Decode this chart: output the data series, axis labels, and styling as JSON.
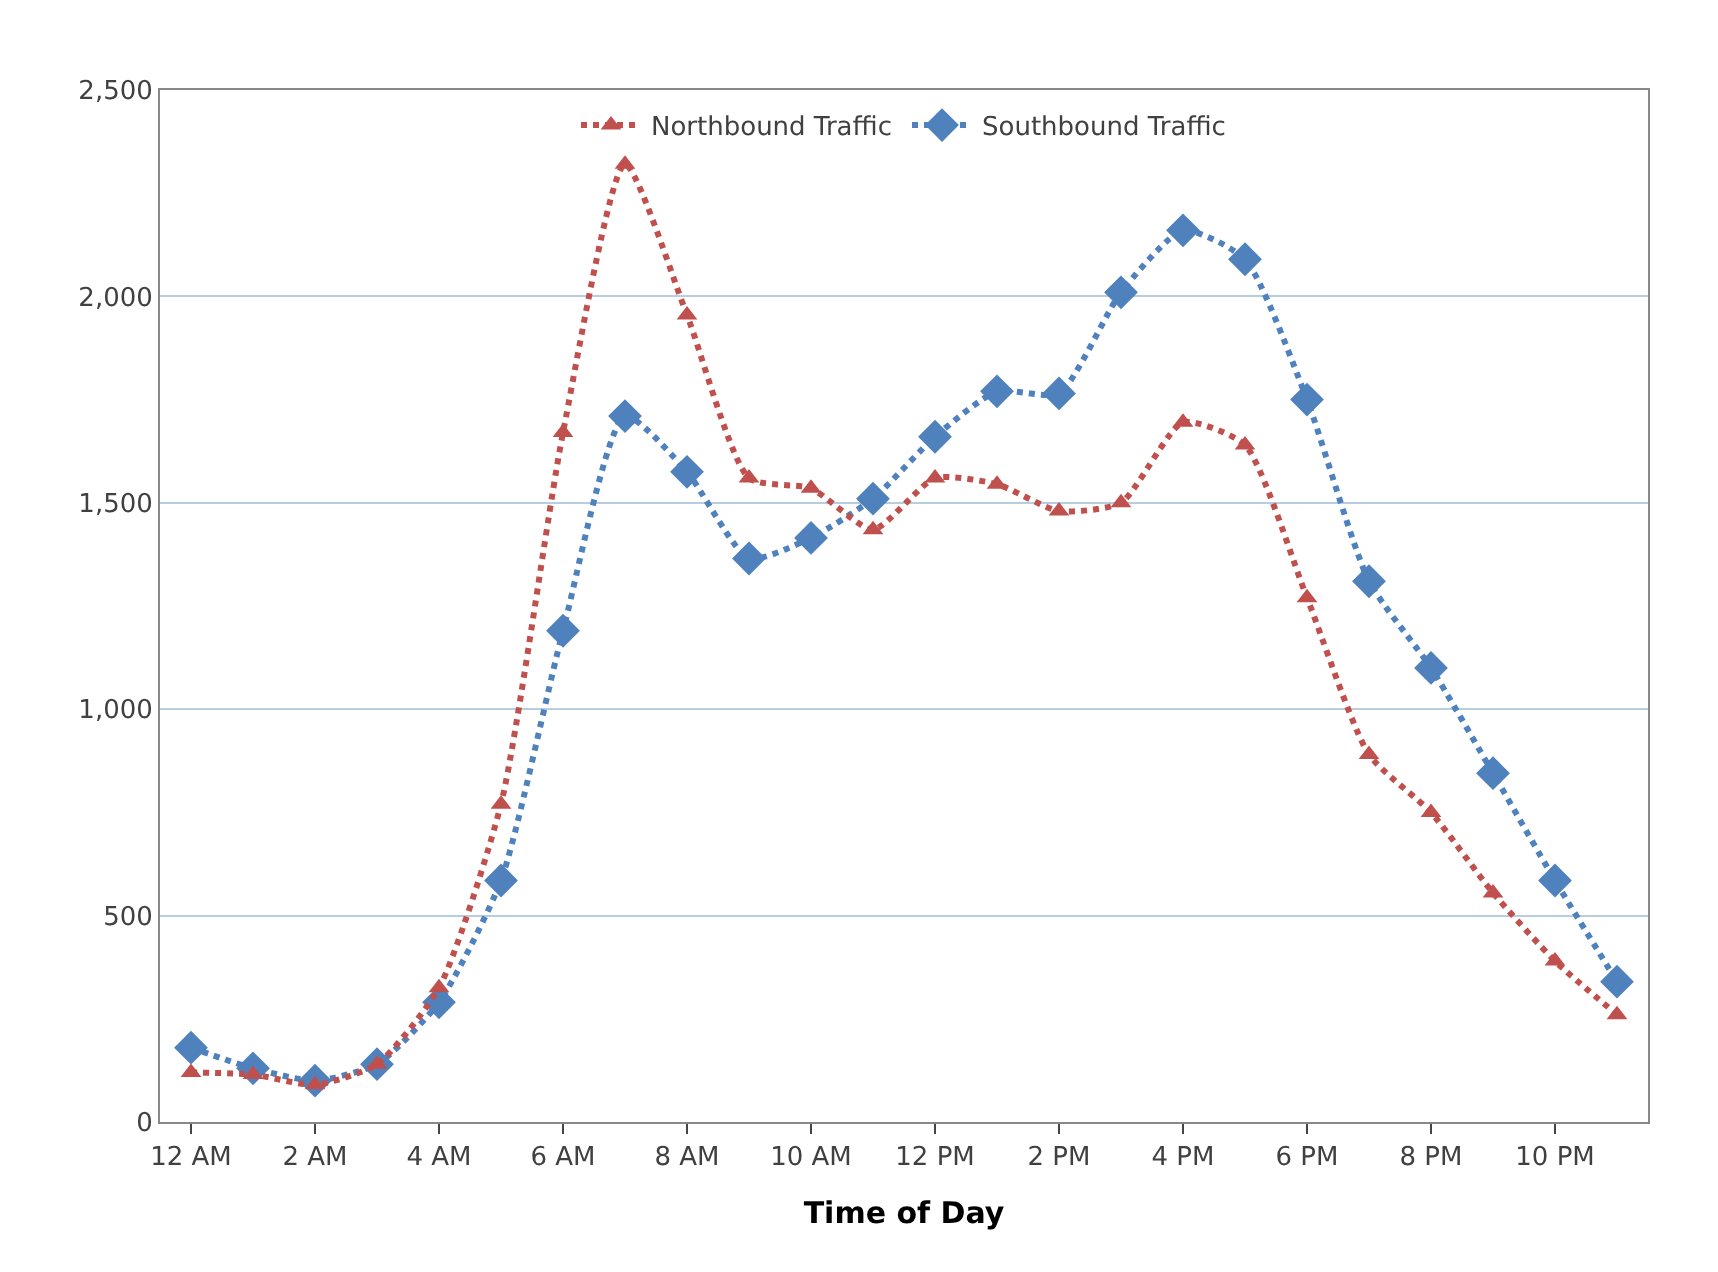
{
  "chart_data": {
    "type": "line",
    "xlabel": "Time of Day",
    "categories": [
      "12 AM",
      null,
      "2 AM",
      null,
      "4 AM",
      null,
      "6 AM",
      null,
      "8 AM",
      null,
      "10 AM",
      null,
      "12 PM",
      null,
      "2 PM",
      null,
      "4 PM",
      null,
      "6 PM",
      null,
      "8 PM",
      null,
      "10 PM",
      null
    ],
    "series": [
      {
        "name": "Northbound Traffic",
        "color": "#c0504d",
        "marker": "triangle",
        "values": [
          120,
          115,
          90,
          140,
          325,
          770,
          1670,
          2320,
          1955,
          1560,
          1535,
          1435,
          1560,
          1545,
          1480,
          1500,
          1695,
          1640,
          1270,
          890,
          750,
          555,
          390,
          260
        ]
      },
      {
        "name": "Southbound Traffic",
        "color": "#4f81bd",
        "marker": "diamond",
        "values": [
          180,
          130,
          100,
          140,
          290,
          585,
          1190,
          1710,
          1575,
          1365,
          1415,
          1510,
          1660,
          1770,
          1765,
          2010,
          2160,
          2090,
          1750,
          1310,
          1100,
          845,
          585,
          340
        ]
      }
    ],
    "ylim": [
      0,
      2500
    ],
    "yticks": [
      0,
      500,
      {
        "value": 1000,
        "label": "1,000"
      },
      {
        "value": 1500,
        "label": "1,500"
      },
      {
        "value": 2000,
        "label": "2,000"
      },
      {
        "value": 2500,
        "label": "2,500"
      }
    ],
    "grid": "y",
    "legend": "top",
    "line_style": "dotted"
  }
}
